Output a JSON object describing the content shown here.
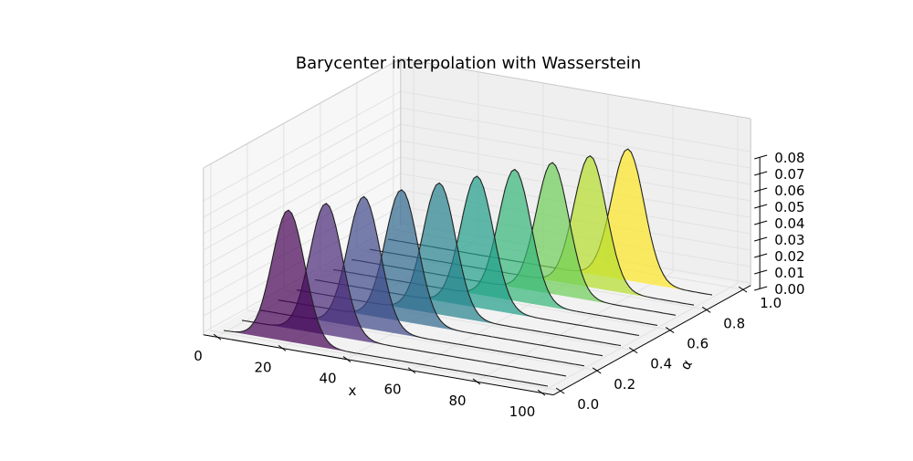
{
  "chart_data": {
    "type": "area",
    "projection": "3d",
    "title": "Barycenter interpolation with Wasserstein",
    "xlabel": "x",
    "ylabel": "α",
    "zlabel": "",
    "xlim": [
      0,
      100
    ],
    "ylim": [
      0,
      1
    ],
    "zlim": [
      0,
      0.08
    ],
    "xticks": [
      "0",
      "20",
      "40",
      "60",
      "80",
      "100"
    ],
    "yticks": [
      "0.0",
      "0.2",
      "0.4",
      "0.6",
      "0.8",
      "1.0"
    ],
    "zticks": [
      "0.00",
      "0.01",
      "0.02",
      "0.03",
      "0.04",
      "0.05",
      "0.06",
      "0.07",
      "0.08"
    ],
    "grid": true,
    "colormap": "viridis",
    "series": [
      {
        "alpha": 0.0,
        "mean": 20,
        "std": 5,
        "peak": 0.08,
        "color": "#440154"
      },
      {
        "alpha": 0.1,
        "mean": 26,
        "std": 5,
        "peak": 0.08,
        "color": "#482878"
      },
      {
        "alpha": 0.2,
        "mean": 32,
        "std": 5,
        "peak": 0.08,
        "color": "#3e4989"
      },
      {
        "alpha": 0.3,
        "mean": 38,
        "std": 5,
        "peak": 0.08,
        "color": "#31688e"
      },
      {
        "alpha": 0.4,
        "mean": 44,
        "std": 5,
        "peak": 0.08,
        "color": "#26828e"
      },
      {
        "alpha": 0.5,
        "mean": 50,
        "std": 5,
        "peak": 0.08,
        "color": "#1f9e89"
      },
      {
        "alpha": 0.6,
        "mean": 56,
        "std": 5,
        "peak": 0.08,
        "color": "#35b779"
      },
      {
        "alpha": 0.7,
        "mean": 62,
        "std": 5,
        "peak": 0.08,
        "color": "#6ece58"
      },
      {
        "alpha": 0.8,
        "mean": 68,
        "std": 5,
        "peak": 0.08,
        "color": "#b5de2b"
      },
      {
        "alpha": 0.9,
        "mean": 74,
        "std": 5,
        "peak": 0.08,
        "color": "#fde725"
      }
    ]
  }
}
